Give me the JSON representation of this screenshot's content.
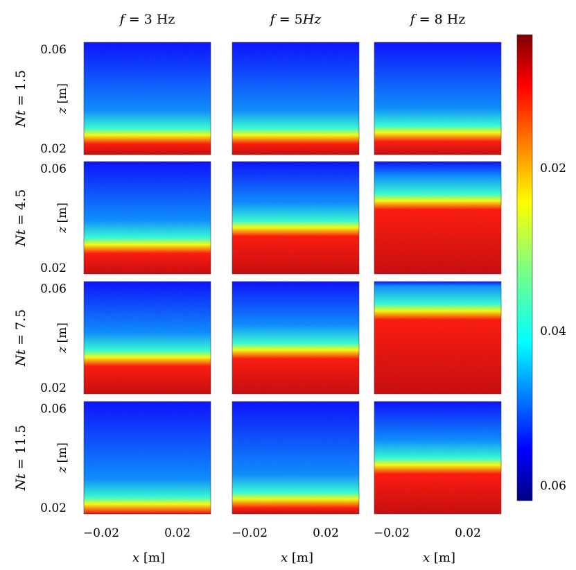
{
  "chart_data": {
    "type": "heatmap",
    "columns": [
      {
        "var": "f",
        "value": "3",
        "unit": "Hz"
      },
      {
        "var": "f",
        "value": "5",
        "unit": "Hz",
        "unit_italic": true
      },
      {
        "var": "f",
        "value": "8",
        "unit": "Hz"
      }
    ],
    "rows": [
      {
        "var": "Nt",
        "value": "1.5"
      },
      {
        "var": "Nt",
        "value": "4.5"
      },
      {
        "var": "Nt",
        "value": "7.5"
      },
      {
        "var": "Nt",
        "value": "11.5"
      }
    ],
    "xlabel": {
      "var": "x",
      "unit": "[m]"
    },
    "ylabel": {
      "var": "z",
      "unit": "[m]"
    },
    "x_ticks": [
      "−0.02",
      "0.02"
    ],
    "y_ticks": [
      "0.06",
      "0.02"
    ],
    "colorbar": {
      "ticks": [
        "0.02",
        "0.04",
        "0.06"
      ],
      "colormap": "jet",
      "reversed": true
    },
    "front_height_m": [
      [
        0.028,
        0.028,
        0.029
      ],
      [
        0.032,
        0.039,
        0.05
      ],
      [
        0.035,
        0.038,
        0.054
      ],
      [
        0.024,
        0.026,
        0.04
      ]
    ]
  }
}
